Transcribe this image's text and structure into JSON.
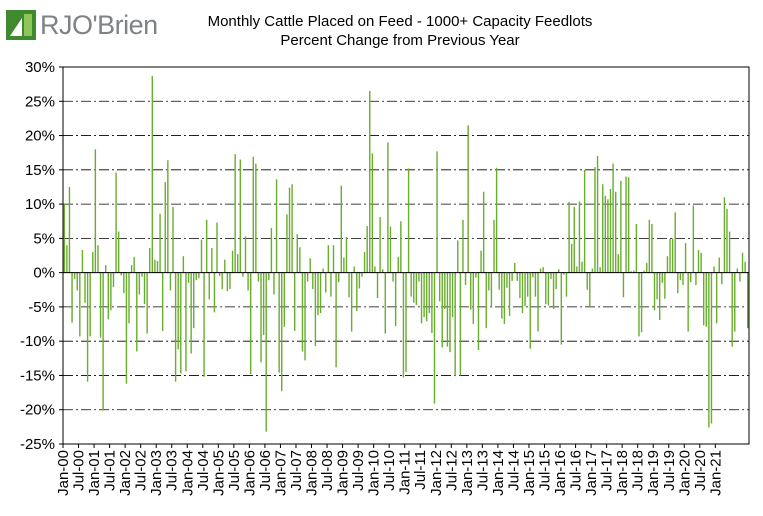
{
  "brand": {
    "logo_text": "RJO'Brien",
    "logo_color": "#3f8a2f",
    "text_color": "#7f8285"
  },
  "chart_data": {
    "type": "bar",
    "title": "Monthly Cattle Placed on Feed - 1000+ Capacity Feedlots",
    "subtitle": "Percent Change from Previous Year",
    "xlabel": "",
    "ylabel": "",
    "ylim": [
      -25,
      30
    ],
    "ytick_step": 5,
    "ytick_labels": [
      "30%",
      "25%",
      "20%",
      "15%",
      "10%",
      "5%",
      "0%",
      "-5%",
      "-10%",
      "-15%",
      "-20%",
      "-25%"
    ],
    "xtick_labels": [
      "Jan-00",
      "Jul-00",
      "Jan-01",
      "Jul-01",
      "Jan-02",
      "Jul-02",
      "Jan-03",
      "Jul-03",
      "Jan-04",
      "Jul-04",
      "Jan-05",
      "Jul-05",
      "Jan-06",
      "Jul-06",
      "Jan-07",
      "Jul-07",
      "Jan-08",
      "Jul-08",
      "Jan-09",
      "Jul-09",
      "Jan-10",
      "Jul-10",
      "Jan-11",
      "Jul-11",
      "Jan-12",
      "Jul-12",
      "Jan-13",
      "Jul-13",
      "Jan-14",
      "Jul-14",
      "Jan-15",
      "Jul-15",
      "Jan-16",
      "Jul-16",
      "Jan-17",
      "Jul-17",
      "Jan-18",
      "Jul-18",
      "Jan-19",
      "Jul-19",
      "Jan-20",
      "Jul-20",
      "Jan-21"
    ],
    "x_start": "2000-01",
    "x_end": "2021-01",
    "grid": true,
    "legend": "none",
    "bar_color": "#6aae2f",
    "series": [
      {
        "values": [
          10,
          4,
          12.5,
          -7.3,
          -0.9,
          -2.6,
          -9.3,
          3.3,
          -4.4,
          -15.9,
          -9.3,
          3,
          18,
          4,
          -9.5,
          -20.1,
          1.1,
          -6.8,
          -5.5,
          -2.1,
          14.6,
          6,
          -0.4,
          -3,
          -16.2,
          -7.4,
          1.1,
          2.3,
          -11.5,
          -3.2,
          -0.6,
          -4.6,
          -8.9,
          3.6,
          28.7,
          1.9,
          1.7,
          8.6,
          -8.5,
          13.2,
          16.4,
          -2.6,
          9.6,
          -15.9,
          -11.2,
          -14.7,
          2.4,
          -14.4,
          -1.5,
          -11.8,
          -8.1,
          -1.1,
          -0.8,
          4.8,
          -15.2,
          7.7,
          -3.9,
          3.6,
          -5.8,
          7.3,
          -0.5,
          -2.4,
          1.9,
          -2.7,
          -2.4,
          3.2,
          17.3,
          2.7,
          16.5,
          -0.6,
          5.3,
          -2.6,
          -14.8,
          16.9,
          15.9,
          -1.3,
          -13.1,
          -9.1,
          -23.2,
          -1.1,
          6.5,
          -3.2,
          13.6,
          -14.6,
          -17.3,
          -7.9,
          8.5,
          12.4,
          12.9,
          -8.5,
          5.6,
          3.7,
          -11.5,
          -12.8,
          -1.3,
          2.1,
          -2.4,
          -10.7,
          -6.2,
          -5.9,
          0.6,
          -2.9,
          4,
          -3.5,
          4,
          -13.8,
          -1.4,
          12.7,
          2.2,
          5.2,
          -3.6,
          -8.6,
          0.9,
          -5.6,
          -2.3,
          -0.6,
          3,
          6.8,
          26.5,
          17.4,
          0.9,
          -3.7,
          8.1,
          0.5,
          -8.9,
          19,
          6.7,
          -1.3,
          -7.8,
          2.3,
          7.5,
          -15.3,
          -14.5,
          15.2,
          -3.5,
          -4.4,
          -4.7,
          -1.3,
          -7.4,
          -6.5,
          -7.1,
          -5.9,
          -8.8,
          -19.1,
          17.7,
          -4.2,
          -10.9,
          -5.3,
          -10.8,
          -11.6,
          -6.5,
          -15.1,
          4.7,
          -15,
          7.7,
          -1.8,
          21.5,
          -5.4,
          -7.5,
          -0.7,
          -11.3,
          3.2,
          11.8,
          -8.1,
          -2.6,
          -5.1,
          7.7,
          15.3,
          -2.5,
          -6.7,
          -7.5,
          -2.2,
          -6.3,
          -1.2,
          1.4,
          -1.2,
          -3.7,
          -5.9,
          -4.9,
          -3.5,
          -11.1,
          -0.7,
          -3.5,
          -8.6,
          0.6,
          0.8,
          -4.6,
          -4.8,
          -0.9,
          -5.3,
          -2.4,
          0.5,
          -10.5,
          -0.3,
          -3.5,
          10.3,
          4.2,
          9.6,
          0.9,
          10.4,
          1.6,
          15,
          -2.5,
          -5.1,
          0.6,
          15.4,
          17,
          0.8,
          12.9,
          11.2,
          10.7,
          12.2,
          15.9,
          11.8,
          2.7,
          13.4,
          -3.6,
          14,
          13.9,
          0.2,
          0.3,
          7.1,
          -9.3,
          -8.7,
          0.3,
          1.4,
          7.7,
          7.1,
          -5.5,
          -3.9,
          -6.9,
          -1.5,
          -3.8,
          2.4,
          4.9,
          5,
          8.8,
          -3,
          -1.1,
          -1.8,
          4.3,
          -8.6,
          -1.4,
          9.8,
          -1.8,
          3.3,
          2.9,
          -7.7,
          -7.9,
          -22.6,
          -22,
          0.9,
          -7.4,
          2.2,
          -1.7,
          11,
          9.3,
          6,
          -10.8,
          -8.6,
          0.6,
          -1.3,
          2.9,
          1.6,
          -8.1
        ]
      }
    ]
  }
}
